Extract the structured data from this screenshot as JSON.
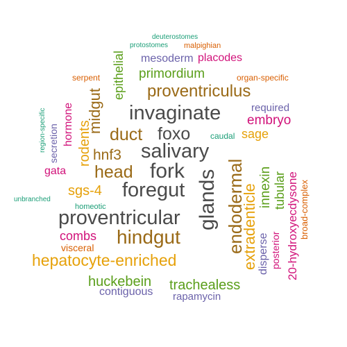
{
  "colors": {
    "grey": "#4a4a4a",
    "brown": "#9a6a17",
    "magenta": "#d1127a",
    "green": "#5a9e1a",
    "purple": "#6b62aa",
    "orange": "#d95f02",
    "teal": "#1b9e77",
    "gold": "#e6a10a"
  },
  "words": [
    {
      "text": "deuterostomes",
      "color": "teal",
      "size": 10
    },
    {
      "text": "protostomes",
      "color": "teal",
      "size": 10
    },
    {
      "text": "malpighian",
      "color": "orange",
      "size": 11
    },
    {
      "text": "placodes",
      "color": "magenta",
      "size": 16
    },
    {
      "text": "mesoderm",
      "color": "purple",
      "size": 16
    },
    {
      "text": "epithelial",
      "color": "green",
      "size": 18,
      "vertical": true
    },
    {
      "text": "primordium",
      "color": "green",
      "size": 19
    },
    {
      "text": "serpent",
      "color": "orange",
      "size": 12
    },
    {
      "text": "organ-specific",
      "color": "orange",
      "size": 12
    },
    {
      "text": "midgut",
      "color": "brown",
      "size": 22,
      "vertical": true
    },
    {
      "text": "proventriculus",
      "color": "brown",
      "size": 24
    },
    {
      "text": "hormone",
      "color": "magenta",
      "size": 16,
      "vertical": true
    },
    {
      "text": "region-specific",
      "color": "teal",
      "size": 10,
      "vertical": true
    },
    {
      "text": "required",
      "color": "purple",
      "size": 15
    },
    {
      "text": "invaginate",
      "color": "grey",
      "size": 29
    },
    {
      "text": "rodents",
      "color": "gold",
      "size": 20,
      "vertical": true
    },
    {
      "text": "embryo",
      "color": "magenta",
      "size": 19
    },
    {
      "text": "secretion",
      "color": "purple",
      "size": 14,
      "vertical": true
    },
    {
      "text": "caudal",
      "color": "teal",
      "size": 12
    },
    {
      "text": "duct",
      "color": "brown",
      "size": 25
    },
    {
      "text": "foxo",
      "color": "grey",
      "size": 25
    },
    {
      "text": "sage",
      "color": "gold",
      "size": 18
    },
    {
      "text": "hnf3",
      "color": "brown",
      "size": 21
    },
    {
      "text": "salivary",
      "color": "grey",
      "size": 29
    },
    {
      "text": "endodermal",
      "color": "brown",
      "size": 26,
      "vertical": true
    },
    {
      "text": "20-hydroxyecdysone",
      "color": "magenta",
      "size": 17,
      "vertical": true
    },
    {
      "text": "gata",
      "color": "magenta",
      "size": 16
    },
    {
      "text": "head",
      "color": "brown",
      "size": 25
    },
    {
      "text": "fork",
      "color": "grey",
      "size": 30
    },
    {
      "text": "glands",
      "color": "grey",
      "size": 30,
      "vertical": true
    },
    {
      "text": "extradenticle",
      "color": "gold",
      "size": 22,
      "vertical": true
    },
    {
      "text": "innexin",
      "color": "green",
      "size": 19,
      "vertical": true
    },
    {
      "text": "tubular",
      "color": "green",
      "size": 18,
      "vertical": true
    },
    {
      "text": "broad-complex",
      "color": "orange",
      "size": 13,
      "vertical": true
    },
    {
      "text": "sgs-4",
      "color": "gold",
      "size": 20
    },
    {
      "text": "foregut",
      "color": "grey",
      "size": 29
    },
    {
      "text": "unbranched",
      "color": "teal",
      "size": 10
    },
    {
      "text": "homeotic",
      "color": "teal",
      "size": 11
    },
    {
      "text": "proventricular",
      "color": "grey",
      "size": 29
    },
    {
      "text": "posterior",
      "color": "magenta",
      "size": 14,
      "vertical": true
    },
    {
      "text": "disperse",
      "color": "purple",
      "size": 16,
      "vertical": true
    },
    {
      "text": "combs",
      "color": "magenta",
      "size": 18
    },
    {
      "text": "hindgut",
      "color": "brown",
      "size": 28
    },
    {
      "text": "visceral",
      "color": "orange",
      "size": 14
    },
    {
      "text": "hepatocyte-enriched",
      "color": "gold",
      "size": 23
    },
    {
      "text": "huckebein",
      "color": "green",
      "size": 20
    },
    {
      "text": "trachealess",
      "color": "green",
      "size": 20
    },
    {
      "text": "contiguous",
      "color": "purple",
      "size": 16
    },
    {
      "text": "rapamycin",
      "color": "purple",
      "size": 15
    }
  ]
}
